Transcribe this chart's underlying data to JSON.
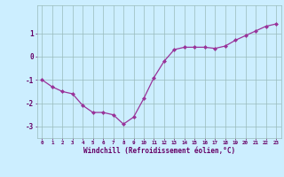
{
  "x": [
    0,
    1,
    2,
    3,
    4,
    5,
    6,
    7,
    8,
    9,
    10,
    11,
    12,
    13,
    14,
    15,
    16,
    17,
    18,
    19,
    20,
    21,
    22,
    23
  ],
  "y": [
    -1.0,
    -1.3,
    -1.5,
    -1.6,
    -2.1,
    -2.4,
    -2.4,
    -2.5,
    -2.9,
    -2.6,
    -1.8,
    -0.9,
    -0.2,
    0.3,
    0.4,
    0.4,
    0.4,
    0.35,
    0.45,
    0.7,
    0.9,
    1.1,
    1.3,
    1.4
  ],
  "line_color": "#993399",
  "marker_color": "#993399",
  "bg_color": "#cceeff",
  "grid_color": "#99bbbb",
  "axis_color": "#660066",
  "xlabel": "Windchill (Refroidissement éolien,°C)",
  "xlim_min": -0.5,
  "xlim_max": 23.5,
  "ylim_min": -3.5,
  "ylim_max": 2.2,
  "yticks": [
    -3,
    -2,
    -1,
    0,
    1
  ],
  "xtick_labels": [
    "0",
    "1",
    "2",
    "3",
    "4",
    "5",
    "6",
    "7",
    "8",
    "9",
    "10",
    "11",
    "12",
    "13",
    "14",
    "15",
    "16",
    "17",
    "18",
    "19",
    "20",
    "21",
    "22",
    "23"
  ]
}
